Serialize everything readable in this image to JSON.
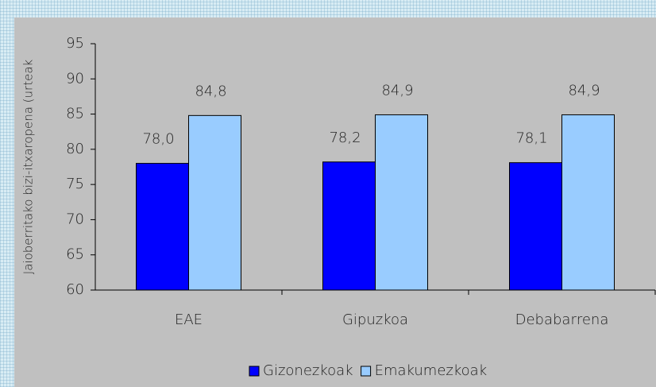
{
  "chart_data": {
    "type": "bar",
    "y_label": "Jaioberritako bizi-itxaropena (urteak",
    "categories": [
      "EAE",
      "Gipuzkoa",
      "Debabarrena"
    ],
    "series": [
      {
        "name": "Gizonezkoak",
        "color": "#0000ff",
        "values": [
          78.0,
          78.2,
          78.1
        ],
        "value_labels": [
          "78,0",
          "78,2",
          "78,1"
        ]
      },
      {
        "name": "Emakumezkoak",
        "color": "#99ccff",
        "values": [
          84.8,
          84.9,
          84.9
        ],
        "value_labels": [
          "84,8",
          "84,9",
          "84,9"
        ]
      }
    ],
    "ylim": [
      60,
      95
    ],
    "yticks": [
      60,
      65,
      70,
      75,
      80,
      85,
      90,
      95
    ],
    "grid": false
  }
}
